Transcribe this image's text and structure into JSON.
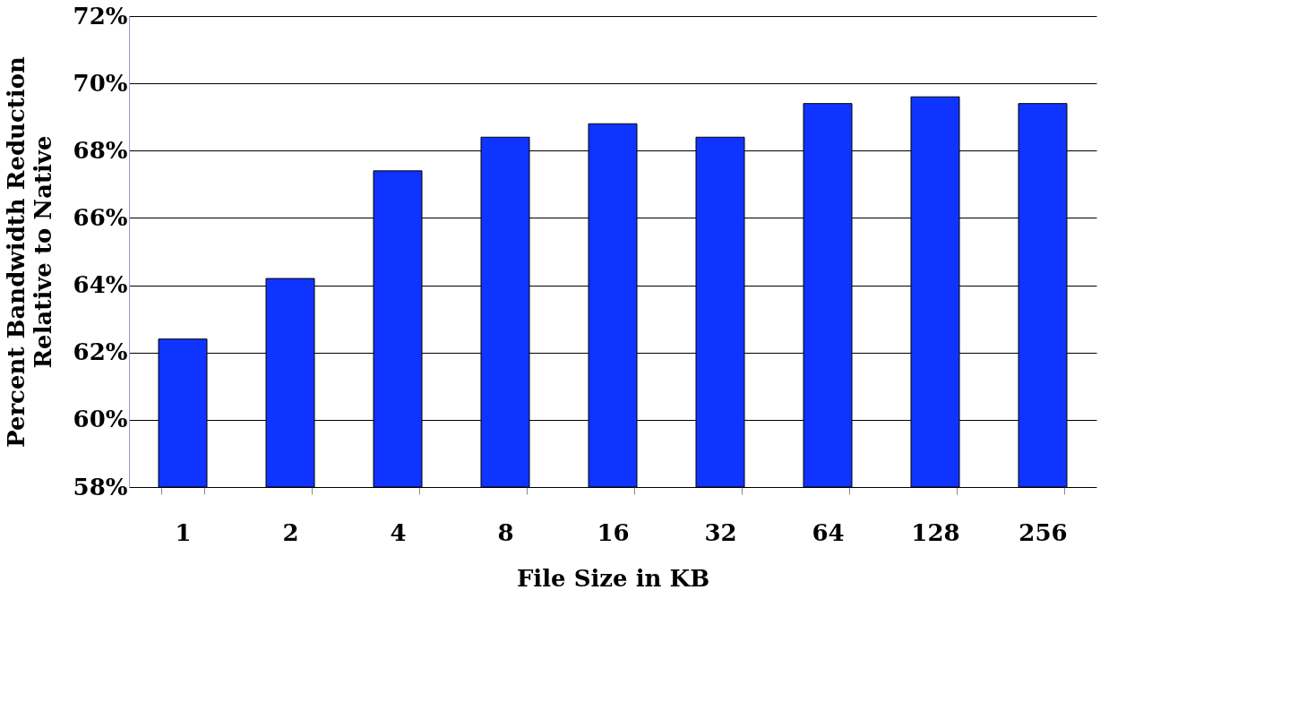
{
  "chart_data": {
    "type": "bar",
    "xlabel": "File Size in KB",
    "ylabel": "Percent Bandwidth Reduction Relative to Native",
    "categories": [
      "1",
      "2",
      "4",
      "8",
      "16",
      "32",
      "64",
      "128",
      "256"
    ],
    "series": [
      {
        "color": "#1034ff",
        "values": [
          62.4,
          64.2,
          67.4,
          68.4,
          68.8,
          68.4,
          69.4,
          69.6,
          69.4
        ]
      }
    ],
    "ylim": [
      58,
      72
    ],
    "yticks": [
      {
        "value": 58,
        "label": "58%"
      },
      {
        "value": 60,
        "label": "60%"
      },
      {
        "value": 62,
        "label": "62%"
      },
      {
        "value": 64,
        "label": "64%"
      },
      {
        "value": 66,
        "label": "66%"
      },
      {
        "value": 68,
        "label": "68%"
      },
      {
        "value": 70,
        "label": "70%"
      },
      {
        "value": 72,
        "label": "72%"
      }
    ],
    "grid": "y"
  }
}
